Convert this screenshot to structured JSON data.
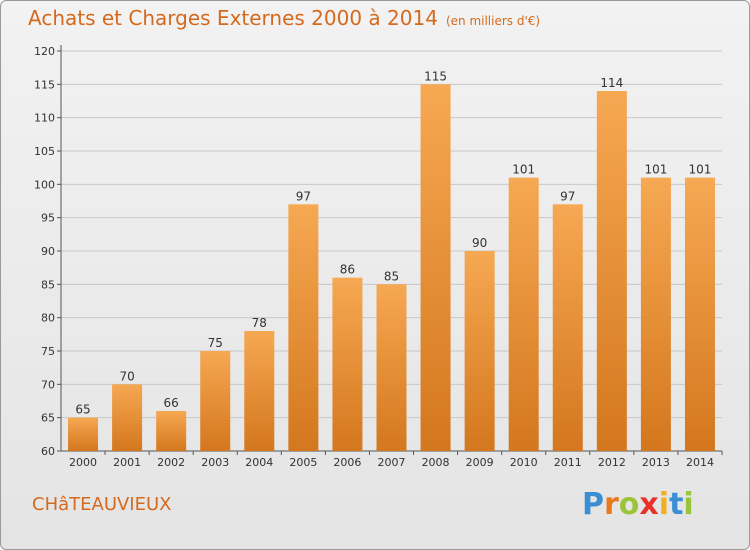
{
  "header": {
    "title": "Achats et Charges Externes 2000 à 2014",
    "subtitle": "(en milliers d'€)"
  },
  "footer": {
    "commune": "CHâTEAUVIEUX",
    "logo_text": "Proxiti",
    "logo_letters": [
      {
        "char": "P",
        "color": "#3a8fd4"
      },
      {
        "char": "r",
        "color": "#e87a1c"
      },
      {
        "char": "o",
        "color": "#9ac43a"
      },
      {
        "char": "x",
        "color": "#e8322a"
      },
      {
        "char": "i",
        "color": "#f0b020"
      },
      {
        "char": "t",
        "color": "#3a8fd4"
      },
      {
        "char": "i",
        "color": "#9ac43a"
      }
    ]
  },
  "colors": {
    "bar_light": "#f6a852",
    "bar_dark": "#d4771e",
    "accent": "#d56a1e",
    "grid": "#c8c8c8"
  },
  "chart_data": {
    "type": "bar",
    "title": "Achats et Charges Externes 2000 à 2014",
    "subtitle": "(en milliers d'€)",
    "xlabel": "",
    "ylabel": "",
    "categories": [
      "2000",
      "2001",
      "2002",
      "2003",
      "2004",
      "2005",
      "2006",
      "2007",
      "2008",
      "2009",
      "2010",
      "2011",
      "2012",
      "2013",
      "2014"
    ],
    "values": [
      65,
      70,
      66,
      75,
      78,
      97,
      86,
      85,
      115,
      90,
      101,
      97,
      114,
      101,
      101
    ],
    "ylim": [
      60,
      120
    ],
    "yticks": [
      60,
      65,
      70,
      75,
      80,
      85,
      90,
      95,
      100,
      105,
      110,
      115,
      120
    ],
    "grid": true,
    "data_labels": true
  }
}
